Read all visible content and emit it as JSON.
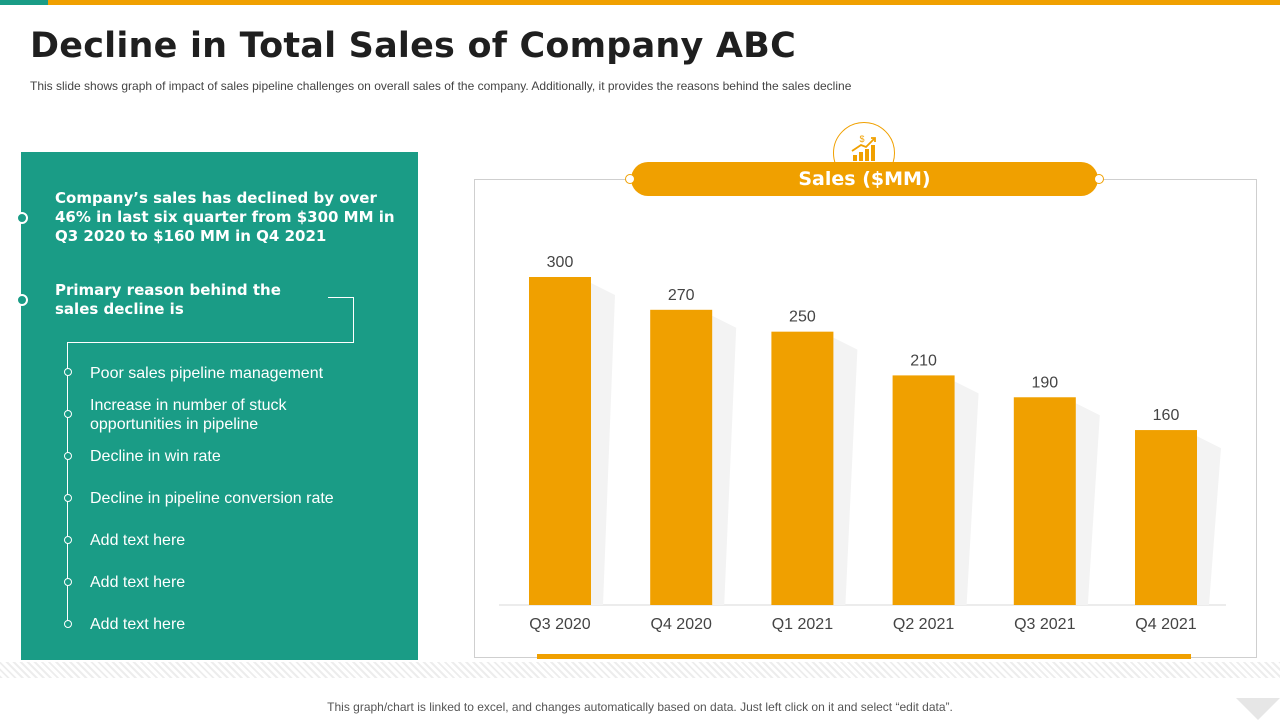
{
  "slide": {
    "title": "Decline in Total Sales of Company ABC",
    "subtitle": "This slide shows graph  of impact of sales pipeline  challenges  on overall  sales of the company.  Additionally,  it provides  the reasons behind the sales decline",
    "footnote": "This graph/chart is linked to excel, and changes automatically based on data. Just left click on it and select “edit data”."
  },
  "panel": {
    "headline": "Company’s sales has declined by over 46% in last six quarter from $300 MM in Q3 2020 to $160 MM in Q4 2021",
    "reason_heading": "Primary reason behind the sales decline is",
    "reasons": [
      "Poor sales pipeline management",
      "Increase  in number  of stuck opportunities in pipeline",
      "Decline in win rate",
      "Decline in pipeline conversion rate",
      "Add text here",
      "Add text here",
      "Add text here"
    ]
  },
  "colors": {
    "accent": "#f0a000",
    "panel": "#1a9c86"
  },
  "icons": {
    "chart_header": "money-growth-chart-icon"
  },
  "chart_data": {
    "type": "bar",
    "title": "Sales ($MM)",
    "categories": [
      "Q3 2020",
      "Q4 2020",
      "Q1 2021",
      "Q2 2021",
      "Q3 2021",
      "Q4 2021"
    ],
    "values": [
      300,
      270,
      250,
      210,
      190,
      160
    ],
    "ylim": [
      0,
      300
    ],
    "grid": false,
    "legend": "none",
    "xlabel": "",
    "ylabel": ""
  }
}
